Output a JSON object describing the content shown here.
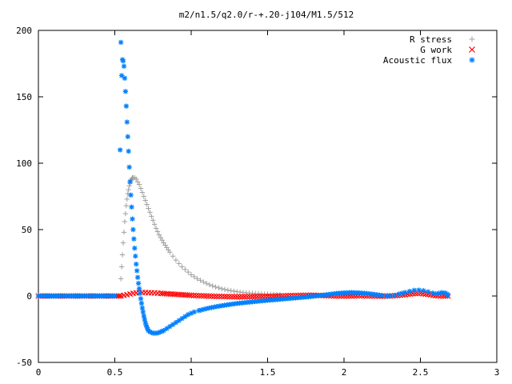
{
  "chart_data": {
    "type": "scatter",
    "title": "m2/n1.5/q2.0/r-+.20-j104/M1.5/512",
    "xlabel": "",
    "ylabel": "",
    "xlim": [
      0,
      3
    ],
    "ylim": [
      -50,
      200
    ],
    "x_ticks": [
      0,
      0.5,
      1,
      1.5,
      2,
      2.5,
      3
    ],
    "x_tick_labels": [
      "0",
      "0.5",
      "1",
      "1.5",
      "2",
      "2.5",
      "3"
    ],
    "y_ticks": [
      -50,
      0,
      50,
      100,
      150,
      200
    ],
    "y_tick_labels": [
      "-50",
      "0",
      "50",
      "100",
      "150",
      "200"
    ],
    "grid": false,
    "legend_position": "top-right",
    "series": [
      {
        "name": "R stress",
        "marker": "+",
        "color": "#a0a0a0",
        "points": [
          [
            0.0,
            0
          ],
          [
            0.1,
            0
          ],
          [
            0.2,
            0
          ],
          [
            0.3,
            0
          ],
          [
            0.4,
            0
          ],
          [
            0.5,
            0
          ],
          [
            0.54,
            0
          ],
          [
            0.54,
            13
          ],
          [
            0.545,
            22
          ],
          [
            0.55,
            31
          ],
          [
            0.555,
            40
          ],
          [
            0.56,
            48
          ],
          [
            0.565,
            56
          ],
          [
            0.57,
            62
          ],
          [
            0.575,
            68
          ],
          [
            0.58,
            73
          ],
          [
            0.585,
            77
          ],
          [
            0.59,
            80
          ],
          [
            0.595,
            83
          ],
          [
            0.6,
            85
          ],
          [
            0.605,
            87
          ],
          [
            0.61,
            88
          ],
          [
            0.615,
            89
          ],
          [
            0.62,
            89
          ],
          [
            0.63,
            89
          ],
          [
            0.64,
            88
          ],
          [
            0.65,
            86
          ],
          [
            0.66,
            84
          ],
          [
            0.67,
            81
          ],
          [
            0.68,
            78
          ],
          [
            0.69,
            75
          ],
          [
            0.7,
            72
          ],
          [
            0.71,
            69
          ],
          [
            0.72,
            66
          ],
          [
            0.73,
            63
          ],
          [
            0.74,
            60
          ],
          [
            0.75,
            57
          ],
          [
            0.76,
            54
          ],
          [
            0.77,
            51
          ],
          [
            0.78,
            48.5
          ],
          [
            0.79,
            46
          ],
          [
            0.8,
            44
          ],
          [
            0.82,
            40
          ],
          [
            0.84,
            36.5
          ],
          [
            0.86,
            33
          ],
          [
            0.88,
            30
          ],
          [
            0.9,
            27
          ],
          [
            0.92,
            24.5
          ],
          [
            0.94,
            22
          ],
          [
            0.96,
            20
          ],
          [
            0.98,
            18
          ],
          [
            1.0,
            16
          ],
          [
            1.02,
            14.5
          ],
          [
            1.04,
            13
          ],
          [
            1.06,
            11.8
          ],
          [
            1.08,
            10.6
          ],
          [
            1.1,
            9.5
          ],
          [
            1.12,
            8.5
          ],
          [
            1.14,
            7.6
          ],
          [
            1.16,
            6.8
          ],
          [
            1.18,
            6.1
          ],
          [
            1.2,
            5.4
          ],
          [
            1.22,
            4.9
          ],
          [
            1.24,
            4.4
          ],
          [
            1.26,
            4
          ],
          [
            1.28,
            3.6
          ],
          [
            1.3,
            3.2
          ],
          [
            1.32,
            2.9
          ],
          [
            1.34,
            2.6
          ],
          [
            1.36,
            2.4
          ],
          [
            1.38,
            2.2
          ],
          [
            1.4,
            2
          ],
          [
            1.42,
            1.8
          ],
          [
            1.44,
            1.7
          ],
          [
            1.46,
            1.6
          ],
          [
            1.48,
            1.5
          ],
          [
            1.5,
            1.4
          ],
          [
            1.52,
            1.3
          ],
          [
            1.54,
            1.2
          ],
          [
            1.56,
            1.1
          ],
          [
            1.58,
            1
          ]
        ]
      },
      {
        "name": "G work",
        "marker": "x",
        "color": "#ff0000",
        "points": [
          [
            0.0,
            0
          ],
          [
            0.1,
            0
          ],
          [
            0.2,
            0
          ],
          [
            0.3,
            0
          ],
          [
            0.4,
            0
          ],
          [
            0.5,
            0
          ],
          [
            0.54,
            0
          ],
          [
            0.56,
            0.5
          ],
          [
            0.58,
            1
          ],
          [
            0.6,
            1.5
          ],
          [
            0.62,
            2
          ],
          [
            0.64,
            2.3
          ],
          [
            0.66,
            2.5
          ],
          [
            0.68,
            2.6
          ],
          [
            0.7,
            2.6
          ],
          [
            0.72,
            2.5
          ],
          [
            0.74,
            2.4
          ],
          [
            0.76,
            2.3
          ],
          [
            0.78,
            2.1
          ],
          [
            0.8,
            2
          ],
          [
            0.84,
            1.7
          ],
          [
            0.88,
            1.4
          ],
          [
            0.92,
            1.1
          ],
          [
            0.96,
            0.8
          ],
          [
            1.0,
            0.5
          ],
          [
            1.05,
            0.2
          ],
          [
            1.1,
            0
          ],
          [
            1.15,
            -0.2
          ],
          [
            1.2,
            -0.4
          ],
          [
            1.25,
            -0.5
          ],
          [
            1.3,
            -0.6
          ],
          [
            1.35,
            -0.6
          ],
          [
            1.4,
            -0.5
          ],
          [
            1.45,
            -0.4
          ],
          [
            1.5,
            -0.3
          ],
          [
            1.55,
            -0.1
          ],
          [
            1.6,
            0.1
          ],
          [
            1.65,
            0.3
          ],
          [
            1.7,
            0.4
          ],
          [
            1.75,
            0.5
          ],
          [
            1.8,
            0.5
          ],
          [
            1.85,
            0.4
          ],
          [
            1.9,
            0.2
          ],
          [
            1.95,
            0
          ],
          [
            2.0,
            0
          ],
          [
            2.05,
            0
          ],
          [
            2.1,
            0.2
          ],
          [
            2.15,
            0.1
          ],
          [
            2.2,
            0
          ],
          [
            2.25,
            -0.1
          ],
          [
            2.3,
            0
          ],
          [
            2.35,
            0.4
          ],
          [
            2.4,
            1
          ],
          [
            2.45,
            1.8
          ],
          [
            2.5,
            2
          ],
          [
            2.55,
            1.2
          ],
          [
            2.6,
            0.2
          ],
          [
            2.65,
            0
          ],
          [
            2.68,
            0
          ]
        ]
      },
      {
        "name": "Acoustic flux",
        "marker": "*",
        "color": "#0080ff",
        "points": [
          [
            0.0,
            0
          ],
          [
            0.1,
            0
          ],
          [
            0.2,
            0
          ],
          [
            0.3,
            0
          ],
          [
            0.4,
            0
          ],
          [
            0.5,
            0
          ],
          [
            0.535,
            110
          ],
          [
            0.54,
            191
          ],
          [
            0.545,
            166
          ],
          [
            0.55,
            178
          ],
          [
            0.555,
            177
          ],
          [
            0.56,
            173
          ],
          [
            0.565,
            164
          ],
          [
            0.57,
            154
          ],
          [
            0.575,
            143
          ],
          [
            0.58,
            131
          ],
          [
            0.585,
            120
          ],
          [
            0.59,
            109
          ],
          [
            0.595,
            97
          ],
          [
            0.6,
            86
          ],
          [
            0.605,
            76
          ],
          [
            0.61,
            67
          ],
          [
            0.615,
            58
          ],
          [
            0.62,
            50
          ],
          [
            0.625,
            43
          ],
          [
            0.63,
            36
          ],
          [
            0.635,
            30
          ],
          [
            0.64,
            24
          ],
          [
            0.645,
            19
          ],
          [
            0.65,
            14
          ],
          [
            0.655,
            9.5
          ],
          [
            0.66,
            5.5
          ],
          [
            0.665,
            2
          ],
          [
            0.67,
            -2
          ],
          [
            0.675,
            -5.5
          ],
          [
            0.68,
            -9
          ],
          [
            0.685,
            -12
          ],
          [
            0.69,
            -15
          ],
          [
            0.695,
            -17.5
          ],
          [
            0.7,
            -20
          ],
          [
            0.705,
            -22
          ],
          [
            0.71,
            -23.5
          ],
          [
            0.715,
            -25
          ],
          [
            0.72,
            -26
          ],
          [
            0.73,
            -27
          ],
          [
            0.74,
            -27.5
          ],
          [
            0.75,
            -28
          ],
          [
            0.76,
            -28
          ],
          [
            0.77,
            -28
          ],
          [
            0.78,
            -27.8
          ],
          [
            0.79,
            -27.5
          ],
          [
            0.8,
            -27
          ],
          [
            0.81,
            -26.5
          ],
          [
            0.82,
            -26
          ],
          [
            0.84,
            -24.5
          ],
          [
            0.86,
            -23
          ],
          [
            0.88,
            -21.5
          ],
          [
            0.9,
            -20
          ],
          [
            0.92,
            -18.5
          ],
          [
            0.94,
            -17
          ],
          [
            0.96,
            -15.5
          ],
          [
            0.98,
            -14
          ],
          [
            1.0,
            -13
          ],
          [
            1.02,
            -12
          ],
          [
            1.05,
            -11
          ],
          [
            1.1,
            -9.5
          ],
          [
            1.15,
            -8.3
          ],
          [
            1.2,
            -7.3
          ],
          [
            1.25,
            -6.4
          ],
          [
            1.3,
            -5.6
          ],
          [
            1.35,
            -5
          ],
          [
            1.4,
            -4.4
          ],
          [
            1.45,
            -3.8
          ],
          [
            1.5,
            -3.3
          ],
          [
            1.55,
            -2.8
          ],
          [
            1.6,
            -2.3
          ],
          [
            1.65,
            -1.8
          ],
          [
            1.7,
            -1.3
          ],
          [
            1.75,
            -0.8
          ],
          [
            1.8,
            -0.2
          ],
          [
            1.85,
            0.5
          ],
          [
            1.9,
            1.2
          ],
          [
            1.95,
            1.9
          ],
          [
            2.0,
            2.4
          ],
          [
            2.05,
            2.6
          ],
          [
            2.1,
            2.4
          ],
          [
            2.15,
            1.9
          ],
          [
            2.2,
            1.2
          ],
          [
            2.25,
            0.4
          ],
          [
            2.28,
            0
          ],
          [
            2.3,
            0
          ],
          [
            2.33,
            0.5
          ],
          [
            2.36,
            1.5
          ],
          [
            2.4,
            2.7
          ],
          [
            2.43,
            3.6
          ],
          [
            2.46,
            4.3
          ],
          [
            2.49,
            4.5
          ],
          [
            2.52,
            4
          ],
          [
            2.55,
            3.2
          ],
          [
            2.58,
            2.2
          ],
          [
            2.6,
            1.6
          ],
          [
            2.62,
            2.1
          ],
          [
            2.64,
            2.6
          ],
          [
            2.66,
            2.4
          ],
          [
            2.675,
            1.5
          ],
          [
            2.68,
            0.5
          ]
        ]
      }
    ]
  }
}
